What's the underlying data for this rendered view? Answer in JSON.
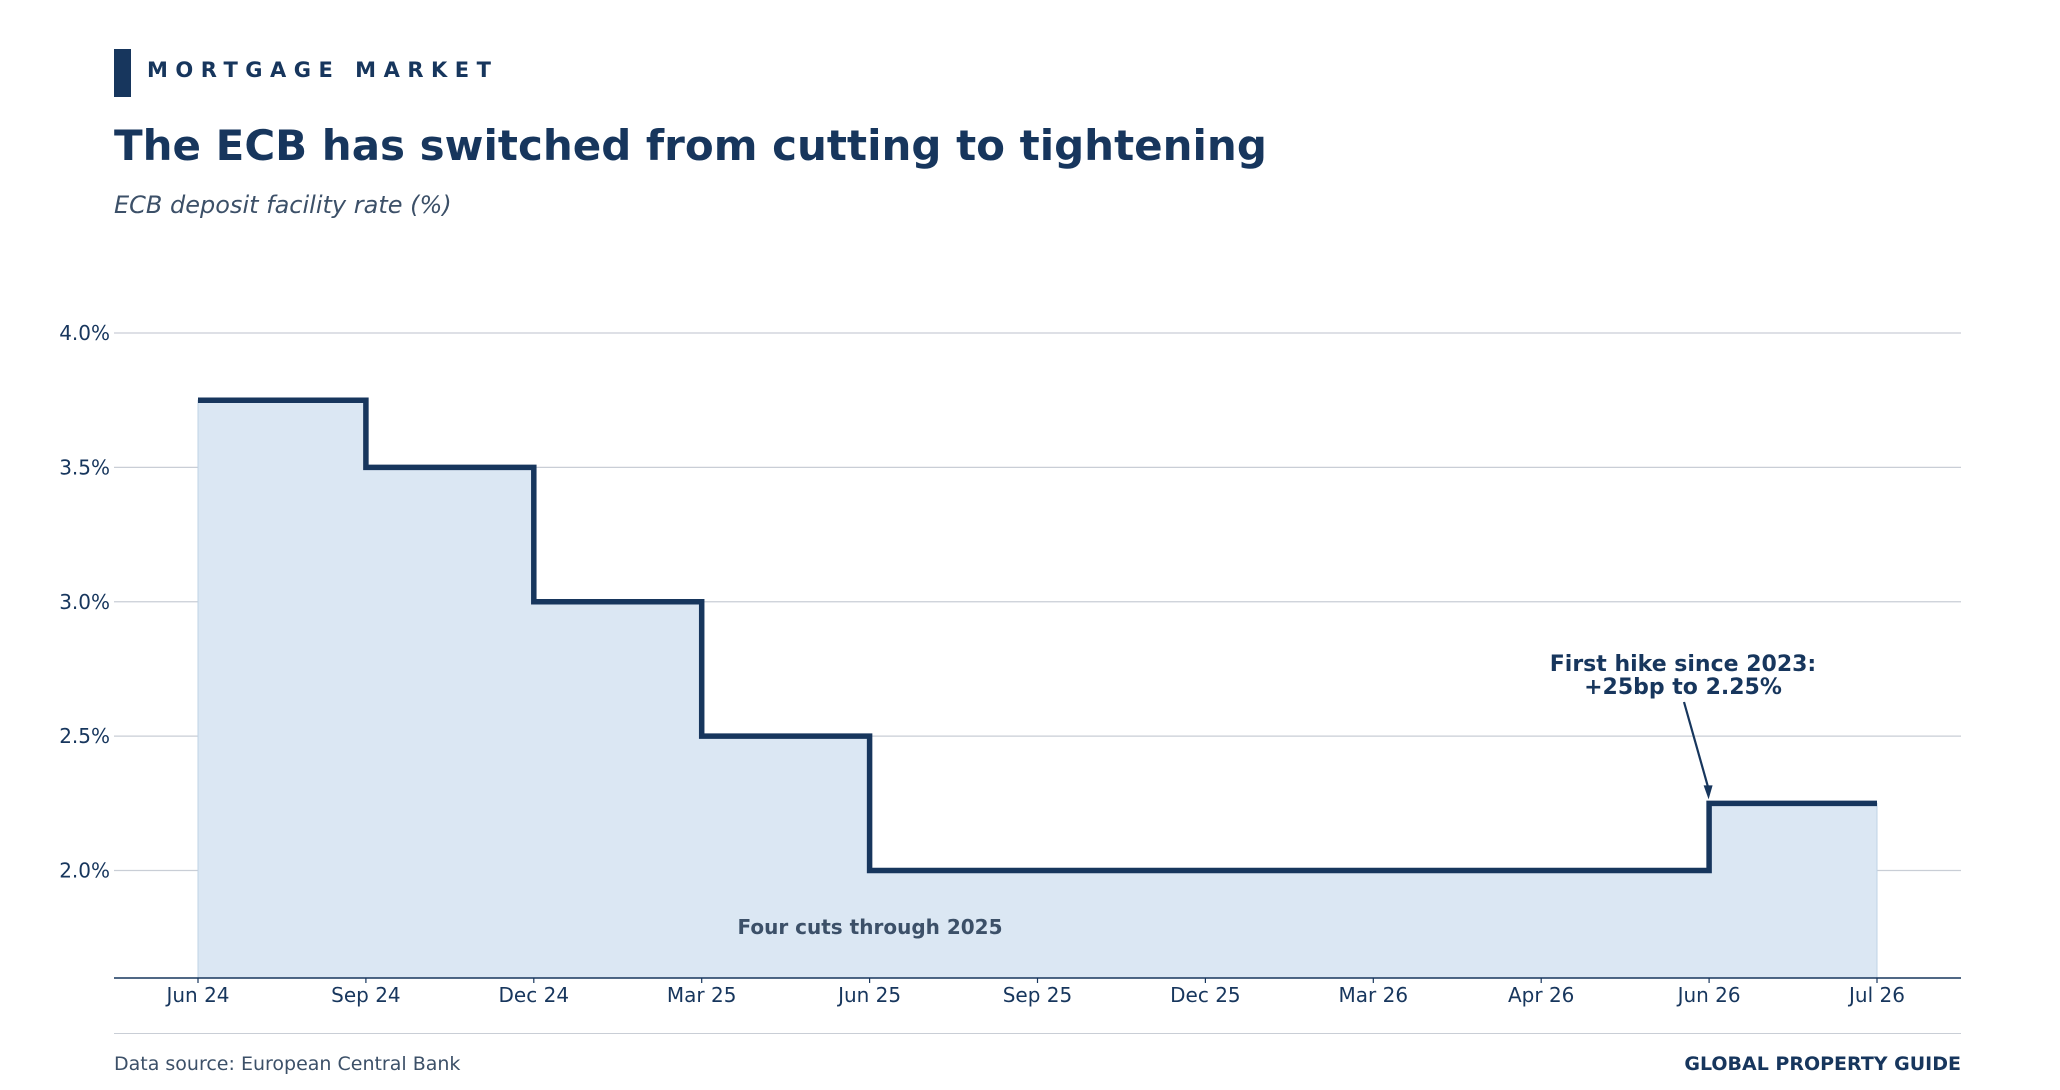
{
  "header": {
    "kicker": "MORTGAGE MARKET",
    "title": "The ECB has switched from cutting to tightening",
    "subtitle": "ECB deposit facility rate (%)"
  },
  "footer": {
    "source": "Data source: European Central Bank",
    "brand": "GLOBAL PROPERTY GUIDE"
  },
  "colors": {
    "line": "#17365d",
    "fill": "#dbe7f3",
    "grid": "#c9ced6",
    "annotation_muted": "#3c5068"
  },
  "chart_data": {
    "type": "line",
    "step": true,
    "categories": [
      "Jun 24",
      "Sep 24",
      "Dec 24",
      "Mar 25",
      "Jun 25",
      "Sep 25",
      "Dec 25",
      "Mar 26",
      "Apr 26",
      "Jun 26",
      "Jul 26"
    ],
    "series": [
      {
        "values": [
          3.75,
          3.5,
          3.0,
          2.5,
          2.0,
          2.0,
          2.0,
          2.0,
          2.0,
          2.25,
          2.25
        ]
      }
    ],
    "ylim": [
      1.6,
      4.0
    ],
    "yticks": [
      2.0,
      2.5,
      3.0,
      3.5,
      4.0
    ],
    "ytick_labels": [
      "2.0%",
      "2.5%",
      "3.0%",
      "3.5%",
      "4.0%"
    ],
    "grid": true,
    "area_fill": true,
    "annotations": [
      {
        "text_lines": [
          "First hike since 2023:",
          "+25bp to 2.25%"
        ],
        "point": {
          "category": "Jun 26",
          "value": 2.25
        },
        "arrow": true
      },
      {
        "text": "Four cuts through 2025"
      }
    ]
  }
}
